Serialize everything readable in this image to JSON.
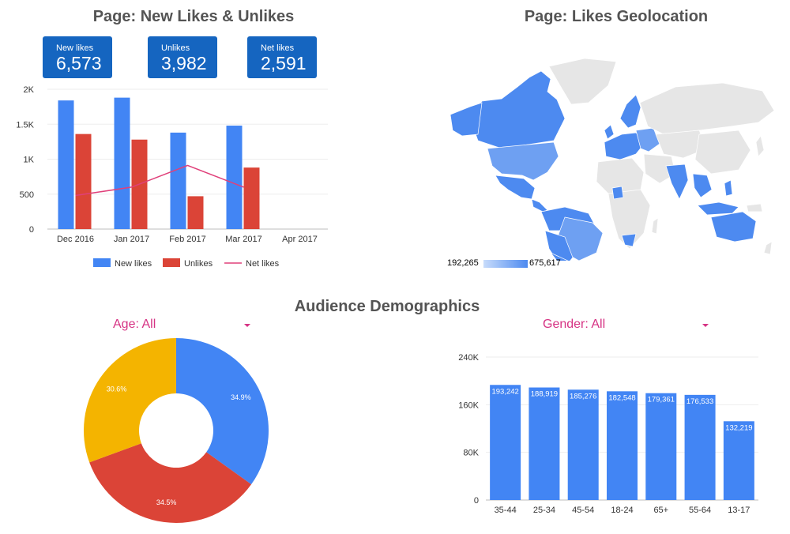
{
  "colors": {
    "blue": "#4285f4",
    "red": "#db4437",
    "yellow": "#f4b400",
    "pink": "#e0407a",
    "kpi": "#1565c0",
    "map_base": "#e6e6e6",
    "map_low": "#c8dcfb",
    "map_high": "#4d8af0"
  },
  "likes": {
    "title": "Page: New Likes & Unlikes",
    "kpis": [
      {
        "label": "New likes",
        "value": "6,573"
      },
      {
        "label": "Unlikes",
        "value": "3,982"
      },
      {
        "label": "Net likes",
        "value": "2,591"
      }
    ]
  },
  "geo": {
    "title": "Page: Likes Geolocation",
    "legend_min": "192,265",
    "legend_max": "675,617"
  },
  "demographics": {
    "title": "Audience Demographics",
    "age_filter": "Age: All",
    "gender_filter": "Gender: All"
  },
  "chart_data": [
    {
      "type": "bar",
      "categories": [
        "Dec 2016",
        "Jan 2017",
        "Feb 2017",
        "Mar 2017",
        "Apr 2017"
      ],
      "series": [
        {
          "name": "New likes",
          "kind": "bar",
          "color": "#4285f4",
          "values": [
            1840,
            1880,
            1380,
            1480,
            null
          ]
        },
        {
          "name": "Unlikes",
          "kind": "bar",
          "color": "#db4437",
          "values": [
            1360,
            1280,
            470,
            880,
            null
          ]
        },
        {
          "name": "Net likes",
          "kind": "line",
          "color": "#e0407a",
          "values": [
            480,
            600,
            910,
            600,
            null
          ]
        }
      ],
      "yticks": [
        "0",
        "500",
        "1K",
        "1.5K",
        "2K"
      ],
      "ylim": [
        0,
        2000
      ],
      "grid": true,
      "legend": "bottom"
    },
    {
      "type": "pie",
      "donut": true,
      "slices": [
        {
          "label": "34.9%",
          "value": 34.9,
          "color": "#4285f4"
        },
        {
          "label": "34.5%",
          "value": 34.5,
          "color": "#db4437"
        },
        {
          "label": "30.6%",
          "value": 30.6,
          "color": "#f4b400"
        }
      ]
    },
    {
      "type": "bar",
      "categories": [
        "35-44",
        "25-34",
        "45-54",
        "18-24",
        "65+",
        "55-64",
        "13-17"
      ],
      "values": [
        193242,
        188919,
        185276,
        182548,
        179361,
        176533,
        132219
      ],
      "value_labels": [
        "193,242",
        "188,919",
        "185,276",
        "182,548",
        "179,361",
        "176,533",
        "132,219"
      ],
      "yticks": [
        "0",
        "80K",
        "160K",
        "240K"
      ],
      "ylim": [
        0,
        240000
      ],
      "grid": true,
      "color": "#4285f4"
    }
  ]
}
